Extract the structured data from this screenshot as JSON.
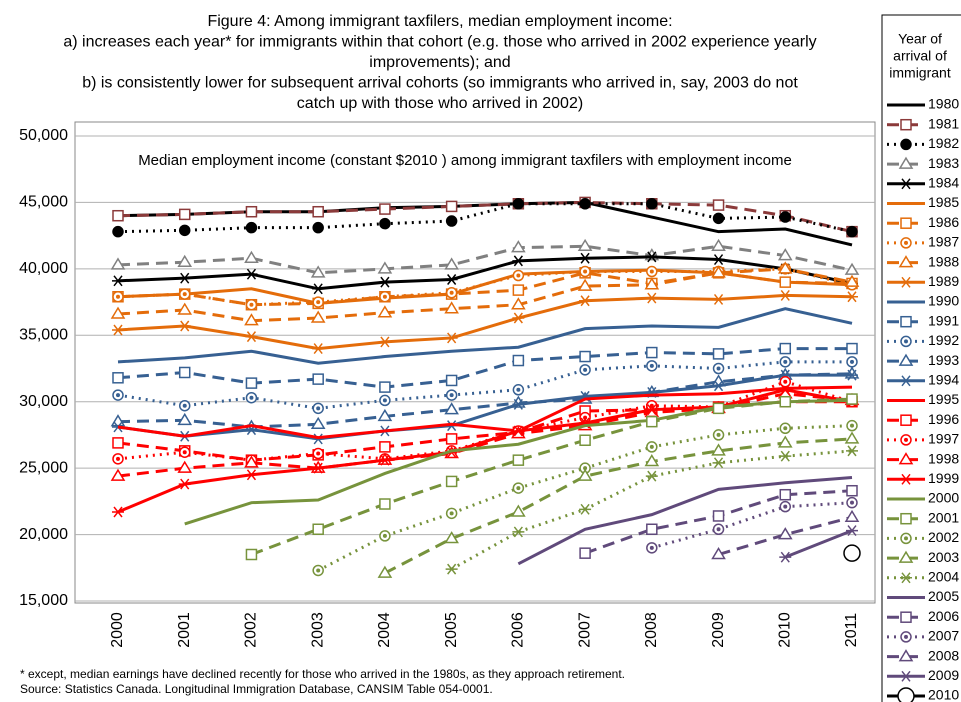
{
  "chart_data": {
    "type": "line",
    "title": [
      "Figure 4: Among immigrant taxfilers, median employment income:",
      "a) increases each year* for immigrants within that cohort (e.g. those who arrived in 2002 experience yearly",
      "improvements); and",
      "b) is consistently lower for subsequent arrival cohorts (so immigrants who arrived in, say, 2003 do not",
      "catch up with those who arrived in 2002)"
    ],
    "annotation": "Median employment income (constant $2010 ) among immigrant taxfilers with employment income",
    "footnotes": [
      "* except, median earnings have declined recently for those who arrived in the 1980s, as they approach retirement.",
      "Source:  Statistics Canada. Longitudinal Immigration Database, CANSIM Table 054-0001."
    ],
    "legend_title": [
      "Year of",
      "arrival of",
      "immigrant"
    ],
    "legend": "right",
    "grid": true,
    "categories": [
      "2000",
      "2001",
      "2002",
      "2003",
      "2004",
      "2005",
      "2006",
      "2007",
      "2008",
      "2009",
      "2010",
      "2011"
    ],
    "ylim": [
      15000,
      50000
    ],
    "yticks": [
      {
        "value": 15000,
        "label": "15,000"
      },
      {
        "value": 20000,
        "label": "20,000"
      },
      {
        "value": 25000,
        "label": "25,000"
      },
      {
        "value": 30000,
        "label": "30,000"
      },
      {
        "value": 35000,
        "label": "35,000"
      },
      {
        "value": 40000,
        "label": "40,000"
      },
      {
        "value": 45000,
        "label": "45,000"
      },
      {
        "value": 50000,
        "label": "50,000"
      }
    ],
    "series": [
      {
        "name": "1980",
        "color": "#000000",
        "dash": "solid",
        "marker": "none",
        "values": [
          44000,
          44100,
          44300,
          44300,
          44600,
          44700,
          44900,
          45000,
          43900,
          42800,
          43000,
          41800
        ]
      },
      {
        "name": "1981",
        "color": "#8b3a3a",
        "dash": "dashed",
        "marker": "square",
        "values": [
          44000,
          44100,
          44300,
          44300,
          44500,
          44700,
          44900,
          45000,
          44900,
          44800,
          44000,
          42800
        ]
      },
      {
        "name": "1982",
        "color": "#000000",
        "dash": "dotted",
        "marker": "dot",
        "values": [
          42800,
          42900,
          43100,
          43100,
          43400,
          43600,
          44900,
          44900,
          44900,
          43800,
          43900,
          42800
        ]
      },
      {
        "name": "1983",
        "color": "#808080",
        "dash": "dashed",
        "marker": "triangle",
        "values": [
          40300,
          40500,
          40800,
          39700,
          40000,
          40300,
          41600,
          41700,
          41000,
          41700,
          41000,
          39900
        ]
      },
      {
        "name": "1984",
        "color": "#000000",
        "dash": "solid",
        "marker": "asterisk",
        "values": [
          39100,
          39300,
          39600,
          38500,
          39000,
          39200,
          40600,
          40800,
          40900,
          40700,
          40000,
          38900
        ]
      },
      {
        "name": "1985",
        "color": "#e46c0a",
        "dash": "solid",
        "marker": "none",
        "values": [
          37900,
          38100,
          38500,
          37400,
          37800,
          38100,
          39600,
          39800,
          39900,
          39700,
          39000,
          38800
        ]
      },
      {
        "name": "1986",
        "color": "#e46c0a",
        "dash": "dashed",
        "marker": "square",
        "values": [
          37900,
          38100,
          37300,
          37400,
          37900,
          38100,
          38400,
          39700,
          38900,
          39700,
          39000,
          38900
        ]
      },
      {
        "name": "1987",
        "color": "#e46c0a",
        "dash": "dotted",
        "marker": "circle",
        "values": [
          37900,
          38100,
          37300,
          37500,
          37900,
          38200,
          39500,
          39800,
          39800,
          39800,
          40000,
          38800
        ]
      },
      {
        "name": "1988",
        "color": "#e46c0a",
        "dash": "dashed",
        "marker": "triangle",
        "values": [
          36600,
          36900,
          36100,
          36300,
          36700,
          37000,
          37300,
          38700,
          38800,
          39700,
          40000,
          39000
        ]
      },
      {
        "name": "1989",
        "color": "#e46c0a",
        "dash": "solid",
        "marker": "asterisk",
        "values": [
          35400,
          35700,
          34900,
          34000,
          34500,
          34800,
          36300,
          37600,
          37800,
          37700,
          38000,
          37900
        ]
      },
      {
        "name": "1990",
        "color": "#376092",
        "dash": "solid",
        "marker": "none",
        "values": [
          33000,
          33300,
          33800,
          32900,
          33400,
          33800,
          34100,
          35500,
          35700,
          35600,
          37000,
          35900
        ]
      },
      {
        "name": "1991",
        "color": "#376092",
        "dash": "dashed",
        "marker": "square",
        "values": [
          31800,
          32200,
          31400,
          31700,
          31100,
          31600,
          33100,
          33400,
          33700,
          33600,
          34000,
          34000
        ]
      },
      {
        "name": "1992",
        "color": "#376092",
        "dash": "dotted",
        "marker": "circle",
        "values": [
          30500,
          29700,
          30300,
          29500,
          30100,
          30500,
          30900,
          32400,
          32700,
          32500,
          33000,
          33000
        ]
      },
      {
        "name": "1993",
        "color": "#376092",
        "dash": "dashed",
        "marker": "triangle",
        "values": [
          28500,
          28600,
          28100,
          28300,
          28900,
          29400,
          29900,
          30200,
          30700,
          31500,
          32000,
          32100
        ]
      },
      {
        "name": "1994",
        "color": "#376092",
        "dash": "solid",
        "marker": "asterisk",
        "values": [
          28100,
          27400,
          27900,
          27200,
          27800,
          28200,
          29800,
          30400,
          30700,
          31200,
          32000,
          32000
        ]
      },
      {
        "name": "1995",
        "color": "#ff0000",
        "dash": "solid",
        "marker": "none",
        "values": [
          28100,
          27400,
          28200,
          27300,
          27800,
          28300,
          27800,
          30200,
          30500,
          30600,
          31000,
          31100
        ]
      },
      {
        "name": "1996",
        "color": "#ff0000",
        "dash": "dashed",
        "marker": "square",
        "values": [
          26900,
          26300,
          25600,
          26000,
          26600,
          27200,
          27700,
          29300,
          29400,
          29600,
          30000,
          30000
        ]
      },
      {
        "name": "1997",
        "color": "#ff0000",
        "dash": "dotted",
        "marker": "circle",
        "values": [
          25700,
          26200,
          25600,
          26100,
          25700,
          26300,
          27800,
          28800,
          29700,
          29600,
          31500,
          30000
        ]
      },
      {
        "name": "1998",
        "color": "#ff0000",
        "dash": "dashed",
        "marker": "triangle",
        "values": [
          24400,
          25000,
          25400,
          25000,
          25600,
          26100,
          27600,
          28200,
          29200,
          29500,
          30600,
          30100
        ]
      },
      {
        "name": "1999",
        "color": "#ff0000",
        "dash": "solid",
        "marker": "asterisk",
        "values": [
          21700,
          23800,
          24500,
          25000,
          25600,
          26200,
          27800,
          28400,
          29400,
          29600,
          30900,
          30000
        ]
      },
      {
        "name": "2000",
        "color": "#77933c",
        "dash": "solid",
        "marker": "none",
        "values": [
          null,
          20800,
          22400,
          22600,
          24600,
          26300,
          26800,
          28200,
          28600,
          29600,
          30000,
          30100
        ]
      },
      {
        "name": "2001",
        "color": "#77933c",
        "dash": "dashed",
        "marker": "square",
        "values": [
          null,
          null,
          18500,
          20400,
          22300,
          24000,
          25600,
          27100,
          28500,
          29500,
          30000,
          30200
        ]
      },
      {
        "name": "2002",
        "color": "#77933c",
        "dash": "dotted",
        "marker": "circle",
        "values": [
          null,
          null,
          null,
          17300,
          19900,
          21600,
          23500,
          25000,
          26600,
          27500,
          28000,
          28200
        ]
      },
      {
        "name": "2003",
        "color": "#77933c",
        "dash": "dashed",
        "marker": "triangle",
        "values": [
          null,
          null,
          null,
          null,
          17100,
          19700,
          21700,
          24400,
          25500,
          26300,
          26900,
          27200
        ]
      },
      {
        "name": "2004",
        "color": "#77933c",
        "dash": "dotted",
        "marker": "asterisk",
        "values": [
          null,
          null,
          null,
          null,
          null,
          17400,
          20200,
          21900,
          24400,
          25400,
          25900,
          26300
        ]
      },
      {
        "name": "2005",
        "color": "#604a7b",
        "dash": "solid",
        "marker": "none",
        "values": [
          null,
          null,
          null,
          null,
          null,
          null,
          17800,
          20400,
          21500,
          23400,
          23900,
          24300
        ]
      },
      {
        "name": "2006",
        "color": "#604a7b",
        "dash": "dashed",
        "marker": "square",
        "values": [
          null,
          null,
          null,
          null,
          null,
          null,
          null,
          18600,
          20400,
          21400,
          23000,
          23300
        ]
      },
      {
        "name": "2007",
        "color": "#604a7b",
        "dash": "dotted",
        "marker": "circle",
        "values": [
          null,
          null,
          null,
          null,
          null,
          null,
          null,
          null,
          19000,
          20400,
          22100,
          22400
        ]
      },
      {
        "name": "2008",
        "color": "#604a7b",
        "dash": "dashed",
        "marker": "triangle",
        "values": [
          null,
          null,
          null,
          null,
          null,
          null,
          null,
          null,
          null,
          18500,
          20000,
          21300
        ]
      },
      {
        "name": "2009",
        "color": "#604a7b",
        "dash": "solid",
        "marker": "asterisk",
        "values": [
          null,
          null,
          null,
          null,
          null,
          null,
          null,
          null,
          null,
          null,
          18300,
          20300
        ]
      },
      {
        "name": "2010",
        "color": "#000000",
        "dash": "solid",
        "marker": "bigcircle",
        "values": [
          null,
          null,
          null,
          null,
          null,
          null,
          null,
          null,
          null,
          null,
          null,
          18600
        ]
      }
    ]
  }
}
